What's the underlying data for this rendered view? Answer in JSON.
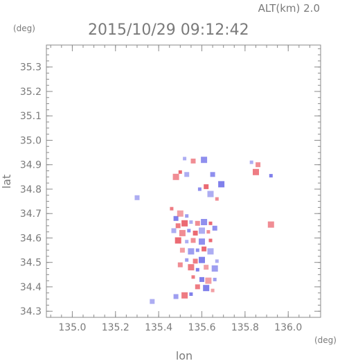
{
  "header": {
    "altitude": "ALT(km) 2.0",
    "timestamp": "2015/10/29 09:12:42"
  },
  "chart_data": {
    "type": "scatter",
    "title": "2015/10/29 09:12:42",
    "subtitle": "ALT(km) 2.0",
    "xlabel": "lon",
    "ylabel": "lat",
    "xunit": "(deg)",
    "yunit": "(deg)",
    "xlim": [
      134.88,
      136.15
    ],
    "ylim": [
      34.275,
      35.39
    ],
    "xticks": [
      "135.0",
      "135.2",
      "135.4",
      "135.6",
      "135.8",
      "136.0"
    ],
    "yticks": [
      "34.3",
      "34.4",
      "34.5",
      "34.6",
      "34.7",
      "34.8",
      "34.9",
      "35.0",
      "35.1",
      "35.2",
      "35.3"
    ],
    "grid": false,
    "colors": {
      "positive": "#e8505a",
      "negative": "#6a6ae8",
      "axis": "#7a7a7a"
    },
    "series": [
      {
        "values": [
          {
            "lon": 135.52,
            "lat": 34.925,
            "v": -1
          },
          {
            "lon": 135.56,
            "lat": 34.915,
            "v": 1
          },
          {
            "lon": 135.61,
            "lat": 34.92,
            "v": -1
          },
          {
            "lon": 135.5,
            "lat": 34.87,
            "v": 1
          },
          {
            "lon": 135.53,
            "lat": 34.86,
            "v": -1
          },
          {
            "lon": 135.48,
            "lat": 34.85,
            "v": 1
          },
          {
            "lon": 135.59,
            "lat": 34.8,
            "v": -1
          },
          {
            "lon": 135.62,
            "lat": 34.81,
            "v": 1
          },
          {
            "lon": 135.64,
            "lat": 34.78,
            "v": -1
          },
          {
            "lon": 135.67,
            "lat": 34.76,
            "v": 1
          },
          {
            "lon": 135.65,
            "lat": 34.86,
            "v": -1
          },
          {
            "lon": 135.69,
            "lat": 34.82,
            "v": -1
          },
          {
            "lon": 135.83,
            "lat": 34.91,
            "v": -1
          },
          {
            "lon": 135.86,
            "lat": 34.9,
            "v": 1
          },
          {
            "lon": 135.85,
            "lat": 34.87,
            "v": 1
          },
          {
            "lon": 135.92,
            "lat": 34.855,
            "v": -1
          },
          {
            "lon": 135.3,
            "lat": 34.765,
            "v": -1
          },
          {
            "lon": 135.92,
            "lat": 34.655,
            "v": 1
          },
          {
            "lon": 135.46,
            "lat": 34.72,
            "v": 1
          },
          {
            "lon": 135.48,
            "lat": 34.68,
            "v": -1
          },
          {
            "lon": 135.5,
            "lat": 34.7,
            "v": 1
          },
          {
            "lon": 135.53,
            "lat": 34.69,
            "v": -1
          },
          {
            "lon": 135.49,
            "lat": 34.65,
            "v": 1
          },
          {
            "lon": 135.52,
            "lat": 34.66,
            "v": 1
          },
          {
            "lon": 135.55,
            "lat": 34.665,
            "v": -1
          },
          {
            "lon": 135.58,
            "lat": 34.66,
            "v": 1
          },
          {
            "lon": 135.61,
            "lat": 34.665,
            "v": -1
          },
          {
            "lon": 135.64,
            "lat": 34.66,
            "v": 1
          },
          {
            "lon": 135.47,
            "lat": 34.63,
            "v": -1
          },
          {
            "lon": 135.51,
            "lat": 34.62,
            "v": 1
          },
          {
            "lon": 135.54,
            "lat": 34.63,
            "v": -1
          },
          {
            "lon": 135.57,
            "lat": 34.62,
            "v": 1
          },
          {
            "lon": 135.6,
            "lat": 34.63,
            "v": -1
          },
          {
            "lon": 135.63,
            "lat": 34.625,
            "v": 1
          },
          {
            "lon": 135.66,
            "lat": 34.64,
            "v": -1
          },
          {
            "lon": 135.49,
            "lat": 34.59,
            "v": 1
          },
          {
            "lon": 135.53,
            "lat": 34.585,
            "v": -1
          },
          {
            "lon": 135.56,
            "lat": 34.59,
            "v": 1
          },
          {
            "lon": 135.6,
            "lat": 34.585,
            "v": -1
          },
          {
            "lon": 135.64,
            "lat": 34.59,
            "v": 1
          },
          {
            "lon": 135.51,
            "lat": 34.55,
            "v": 1
          },
          {
            "lon": 135.55,
            "lat": 34.545,
            "v": -1
          },
          {
            "lon": 135.58,
            "lat": 34.55,
            "v": -1
          },
          {
            "lon": 135.61,
            "lat": 34.555,
            "v": 1
          },
          {
            "lon": 135.64,
            "lat": 34.545,
            "v": -1
          },
          {
            "lon": 135.53,
            "lat": 34.51,
            "v": -1
          },
          {
            "lon": 135.57,
            "lat": 34.505,
            "v": 1
          },
          {
            "lon": 135.6,
            "lat": 34.51,
            "v": -1
          },
          {
            "lon": 135.67,
            "lat": 34.505,
            "v": -1
          },
          {
            "lon": 135.5,
            "lat": 34.49,
            "v": 1
          },
          {
            "lon": 135.55,
            "lat": 34.48,
            "v": 1
          },
          {
            "lon": 135.58,
            "lat": 34.47,
            "v": -1
          },
          {
            "lon": 135.62,
            "lat": 34.48,
            "v": 1
          },
          {
            "lon": 135.66,
            "lat": 34.475,
            "v": -1
          },
          {
            "lon": 135.56,
            "lat": 34.44,
            "v": 1
          },
          {
            "lon": 135.6,
            "lat": 34.43,
            "v": -1
          },
          {
            "lon": 135.63,
            "lat": 34.425,
            "v": 1
          },
          {
            "lon": 135.66,
            "lat": 34.43,
            "v": -1
          },
          {
            "lon": 135.58,
            "lat": 34.4,
            "v": 1
          },
          {
            "lon": 135.62,
            "lat": 34.395,
            "v": -1
          },
          {
            "lon": 135.65,
            "lat": 34.385,
            "v": 1
          },
          {
            "lon": 135.48,
            "lat": 34.36,
            "v": -1
          },
          {
            "lon": 135.52,
            "lat": 34.365,
            "v": 1
          },
          {
            "lon": 135.55,
            "lat": 34.37,
            "v": -1
          },
          {
            "lon": 135.37,
            "lat": 34.34,
            "v": -1
          }
        ]
      }
    ]
  }
}
